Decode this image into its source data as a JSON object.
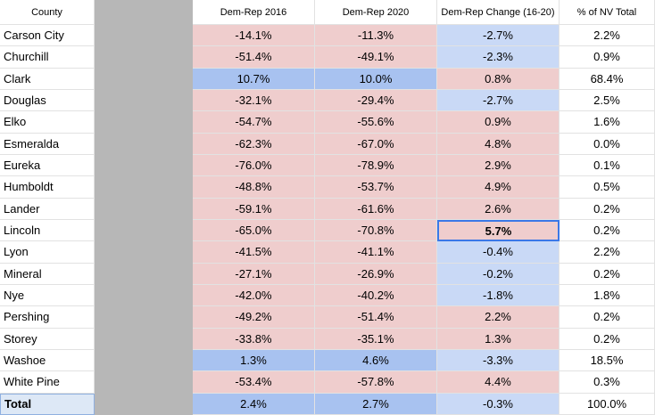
{
  "table": {
    "header": [
      "County",
      "Dem-Rep 2016",
      "Dem-Rep 2020",
      "Dem-Rep Change (16-20)",
      "% of NV Total"
    ],
    "rows": [
      [
        "Carson City",
        "-14.1%",
        "-11.3%",
        "-2.7%",
        "2.2%"
      ],
      [
        "Churchill",
        "-51.4%",
        "-49.1%",
        "-2.3%",
        "0.9%"
      ],
      [
        "Clark",
        "10.7%",
        "10.0%",
        "0.8%",
        "68.4%"
      ],
      [
        "Douglas",
        "-32.1%",
        "-29.4%",
        "-2.7%",
        "2.5%"
      ],
      [
        "Elko",
        "-54.7%",
        "-55.6%",
        "0.9%",
        "1.6%"
      ],
      [
        "Esmeralda",
        "-62.3%",
        "-67.0%",
        "4.8%",
        "0.0%"
      ],
      [
        "Eureka",
        "-76.0%",
        "-78.9%",
        "2.9%",
        "0.1%"
      ],
      [
        "Humboldt",
        "-48.8%",
        "-53.7%",
        "4.9%",
        "0.5%"
      ],
      [
        "Lander",
        "-59.1%",
        "-61.6%",
        "2.6%",
        "0.2%"
      ],
      [
        "Lincoln",
        "-65.0%",
        "-70.8%",
        "5.7%",
        "0.2%"
      ],
      [
        "Lyon",
        "-41.5%",
        "-41.1%",
        "-0.4%",
        "2.2%"
      ],
      [
        "Mineral",
        "-27.1%",
        "-26.9%",
        "-0.2%",
        "0.2%"
      ],
      [
        "Nye",
        "-42.0%",
        "-40.2%",
        "-1.8%",
        "1.8%"
      ],
      [
        "Pershing",
        "-49.2%",
        "-51.4%",
        "2.2%",
        "0.2%"
      ],
      [
        "Storey",
        "-33.8%",
        "-35.1%",
        "1.3%",
        "0.2%"
      ],
      [
        "Washoe",
        "1.3%",
        "4.6%",
        "-3.3%",
        "18.5%"
      ],
      [
        "White Pine",
        "-53.4%",
        "-57.8%",
        "4.4%",
        "0.3%"
      ],
      [
        "Total",
        "2.4%",
        "2.7%",
        "-0.3%",
        "100.0%"
      ]
    ]
  }
}
